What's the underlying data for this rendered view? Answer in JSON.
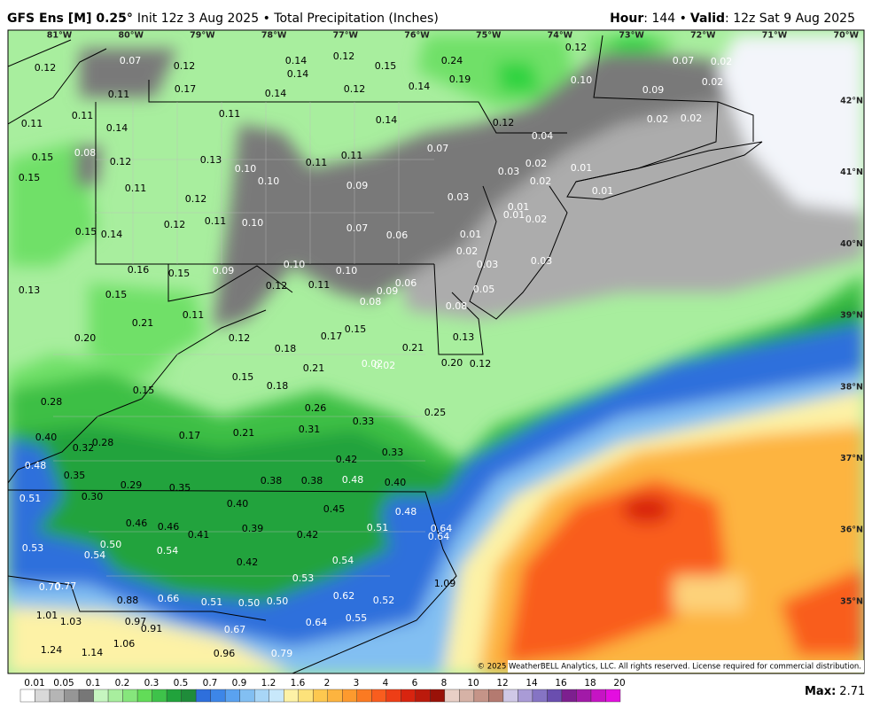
{
  "header": {
    "title": "GFS Ens [M] 0.25°",
    "subtitle": "Init 12z 3 Aug 2025 • Total Precipitation (Inches)",
    "hour_label": "Hour",
    "hour_text": ": 144 •",
    "valid_label": "Valid",
    "valid_text": ": 12z Sat 9 Aug 2025"
  },
  "map": {
    "longitudes": [
      "81°W",
      "80°W",
      "79°W",
      "78°W",
      "77°W",
      "76°W",
      "75°W",
      "74°W",
      "73°W",
      "72°W",
      "71°W",
      "70°W"
    ],
    "latitudes": [
      "42°N",
      "41°N",
      "40°N",
      "39°N",
      "38°N",
      "37°N",
      "36°N",
      "35°N"
    ],
    "labels": [
      "0.07",
      "0.12",
      "0.12",
      "0.14",
      "0.12",
      "0.14",
      "0.15",
      "0.24",
      "0.19",
      "0.12",
      "0.10",
      "0.07",
      "0.02",
      "0.02",
      "0.09",
      "0.11",
      "0.17",
      "0.14",
      "0.12",
      "0.14",
      "0.11",
      "0.11",
      "0.14",
      "0.11",
      "0.14",
      "0.12",
      "0.04",
      "0.02",
      "0.02",
      "0.15",
      "0.08",
      "0.12",
      "0.13",
      "0.10",
      "0.11",
      "0.11",
      "0.07",
      "0.02",
      "0.01",
      "0.15",
      "0.11",
      "0.10",
      "0.09",
      "0.03",
      "0.02",
      "0.01",
      "0.12",
      "0.11",
      "0.10",
      "0.03",
      "0.01",
      "0.01",
      "0.02",
      "0.15",
      "0.14",
      "0.12",
      "0.07",
      "0.06",
      "0.01",
      "0.02",
      "0.03",
      "0.03",
      "0.16",
      "0.15",
      "0.09",
      "0.10",
      "0.10",
      "0.13",
      "0.15",
      "0.12",
      "0.11",
      "0.09",
      "0.06",
      "0.08",
      "0.05",
      "0.08",
      "0.21",
      "0.11",
      "0.15",
      "0.17",
      "0.13",
      "0.20",
      "0.12",
      "0.18",
      "0.21",
      "0.21",
      "0.02",
      "0.02",
      "0.20",
      "0.12",
      "0.15",
      "0.18",
      "0.15",
      "0.28",
      "0.26",
      "0.25",
      "0.31",
      "0.33",
      "0.40",
      "0.32",
      "0.28",
      "0.17",
      "0.21",
      "0.33",
      "0.42",
      "0.48",
      "0.35",
      "0.29",
      "0.35",
      "0.38",
      "0.38",
      "0.48",
      "0.40",
      "0.51",
      "0.30",
      "0.40",
      "0.45",
      "0.48",
      "0.46",
      "0.46",
      "0.41",
      "0.39",
      "0.42",
      "0.51",
      "0.64",
      "0.64",
      "0.53",
      "0.50",
      "0.54",
      "0.54",
      "0.42",
      "0.54",
      "0.53",
      "1.09",
      "0.70",
      "0.77",
      "0.88",
      "0.66",
      "0.51",
      "0.50",
      "0.50",
      "0.62",
      "0.52",
      "1.01",
      "1.03",
      "0.97",
      "0.91",
      "0.55",
      "0.64",
      "0.67",
      "1.24",
      "1.06",
      "1.14",
      "0.96",
      "0.79"
    ],
    "copyright": "© 2025 WeatherBELL Analytics, LLC. All rights reserved. License required for commercial distribution."
  },
  "legend": {
    "ticks": [
      "0.01",
      "0.05",
      "0.1",
      "0.2",
      "0.3",
      "0.5",
      "0.7",
      "0.9",
      "1.2",
      "1.6",
      "2",
      "3",
      "4",
      "6",
      "8",
      "10",
      "12",
      "14",
      "16",
      "18",
      "20"
    ],
    "max_label": "Max:",
    "max_value": "2.71"
  }
}
